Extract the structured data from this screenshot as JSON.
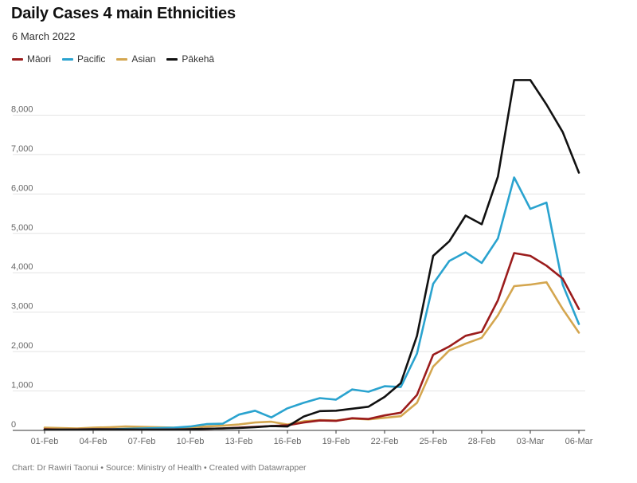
{
  "title": "Daily Cases 4 main Ethnicities",
  "subtitle": "6 March 2022",
  "footer": "Chart: Dr Rawiri Taonui • Source: Ministry of Health • Created with Datawrapper",
  "chart_data": {
    "type": "line",
    "title": "Daily Cases 4 main Ethnicities",
    "subtitle": "6 March 2022",
    "xlabel": "",
    "ylabel": "",
    "ylim": [
      0,
      9000
    ],
    "grid": true,
    "legend_position": "top-left",
    "y_ticks": [
      0,
      1000,
      2000,
      3000,
      4000,
      5000,
      6000,
      7000,
      8000
    ],
    "y_tick_labels": [
      "0",
      "1,000",
      "2,000",
      "3,000",
      "4,000",
      "5,000",
      "6,000",
      "7,000",
      "8,000"
    ],
    "x_tick_labels": [
      "01-Feb",
      "04-Feb",
      "07-Feb",
      "10-Feb",
      "13-Feb",
      "16-Feb",
      "19-Feb",
      "22-Feb",
      "25-Feb",
      "28-Feb",
      "03-Mar",
      "06-Mar"
    ],
    "x": [
      "01-Feb",
      "02-Feb",
      "03-Feb",
      "04-Feb",
      "05-Feb",
      "06-Feb",
      "07-Feb",
      "08-Feb",
      "09-Feb",
      "10-Feb",
      "11-Feb",
      "12-Feb",
      "13-Feb",
      "14-Feb",
      "15-Feb",
      "16-Feb",
      "17-Feb",
      "18-Feb",
      "19-Feb",
      "20-Feb",
      "21-Feb",
      "22-Feb",
      "23-Feb",
      "24-Feb",
      "25-Feb",
      "26-Feb",
      "27-Feb",
      "28-Feb",
      "01-Mar",
      "02-Mar",
      "03-Mar",
      "04-Mar",
      "05-Mar",
      "06-Mar"
    ],
    "series": [
      {
        "name": "Māori",
        "color": "#9b1c1c",
        "values": [
          30,
          20,
          25,
          30,
          30,
          25,
          20,
          20,
          25,
          30,
          40,
          50,
          70,
          90,
          110,
          130,
          200,
          250,
          240,
          310,
          290,
          380,
          450,
          900,
          1920,
          2130,
          2400,
          2500,
          3300,
          4500,
          4430,
          4180,
          3850,
          3080
        ]
      },
      {
        "name": "Pacific",
        "color": "#2aa3cf",
        "values": [
          20,
          20,
          25,
          30,
          30,
          40,
          50,
          60,
          70,
          100,
          160,
          170,
          400,
          500,
          330,
          560,
          700,
          820,
          780,
          1040,
          980,
          1120,
          1100,
          1950,
          3720,
          4300,
          4520,
          4250,
          4870,
          6420,
          5620,
          5780,
          3700,
          2700
        ]
      },
      {
        "name": "Asian",
        "color": "#d4a64f",
        "values": [
          70,
          60,
          50,
          70,
          80,
          100,
          90,
          80,
          70,
          80,
          100,
          120,
          150,
          200,
          220,
          150,
          230,
          260,
          250,
          300,
          280,
          320,
          360,
          700,
          1620,
          2030,
          2200,
          2350,
          2920,
          3660,
          3700,
          3760,
          3080,
          2480
        ]
      },
      {
        "name": "Pākehā",
        "color": "#111111",
        "values": [
          20,
          20,
          20,
          25,
          25,
          25,
          20,
          20,
          20,
          30,
          40,
          50,
          60,
          80,
          110,
          100,
          350,
          490,
          500,
          550,
          600,
          850,
          1200,
          2400,
          4430,
          4800,
          5450,
          5230,
          6440,
          8890,
          8890,
          8270,
          7570,
          6540
        ]
      }
    ]
  }
}
